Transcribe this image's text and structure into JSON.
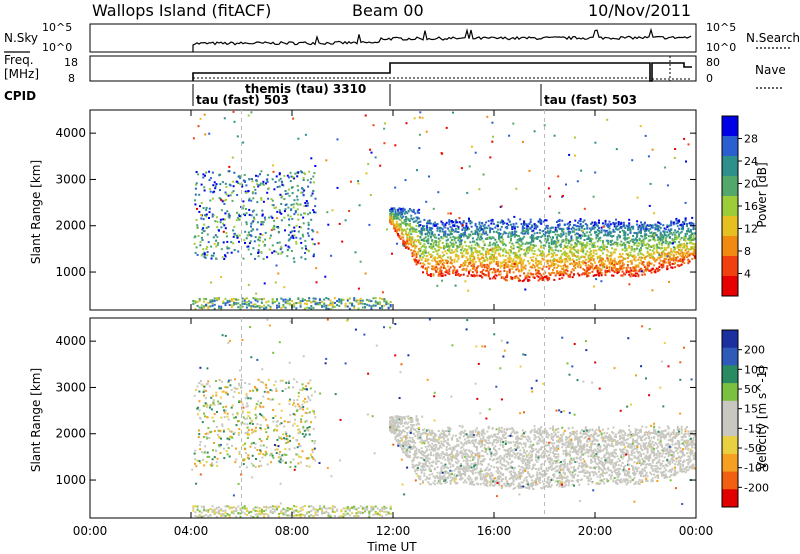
{
  "header": {
    "station": "Wallops Island (fitACF)",
    "beam": "Beam 00",
    "date": "10/Nov/2011"
  },
  "left_labels": {
    "nsky": "N.Sky",
    "freq": "Freq.",
    "freq_unit": "[MHz]",
    "cpid": "CPID"
  },
  "right_labels": {
    "nsearch": "N.Search",
    "nave": "Nave"
  },
  "top_axes": {
    "nsky_ticks": [
      "10^5",
      "10^0"
    ],
    "nsearch_ticks": [
      "10^5",
      "10^0"
    ],
    "freq_ticks": [
      "18",
      "8"
    ],
    "nave_ticks": [
      "80",
      "0"
    ]
  },
  "cpid_blocks": [
    {
      "label": "tau (fast) 503",
      "start_hour": 4.0
    },
    {
      "label": "themis (tau) 3310",
      "start_hour": 12.0
    },
    {
      "label": "tau (fast) 503",
      "start_hour": 18.0
    }
  ],
  "chart_data": {
    "type": "heatmap",
    "x_axis": {
      "label": "Time UT",
      "ticks": [
        "00:00",
        "04:00",
        "08:00",
        "12:00",
        "16:00",
        "20:00",
        "00:00"
      ],
      "range_hours": [
        0,
        24
      ]
    },
    "y_axis": {
      "label": "Slant Range [km]",
      "ticks": [
        1000,
        2000,
        3000,
        4000
      ],
      "range_km": [
        180,
        4500
      ]
    },
    "panels": [
      {
        "name": "power",
        "colorbar_label": "Power [dB]",
        "colorbar_ticks": [
          "28",
          "24",
          "20",
          "16",
          "12",
          "8",
          "4"
        ],
        "colors": [
          "#0000e6",
          "#2a5fd0",
          "#2f8f8a",
          "#52a86a",
          "#9ccc3a",
          "#e6c020",
          "#f08a10",
          "#f04010",
          "#e60000"
        ]
      },
      {
        "name": "velocity",
        "colorbar_label": "Velocity [m s^-1]",
        "colorbar_ticks": [
          "200",
          "100",
          "50",
          "15",
          "-15",
          "-50",
          "-100",
          "-200"
        ],
        "colors": [
          "#1b2f9e",
          "#2f5bb8",
          "#2a8a62",
          "#7ac142",
          "#c8c8c0",
          "#c8c8c0",
          "#e8d040",
          "#f5a020",
          "#f06010",
          "#e00000"
        ]
      }
    ]
  }
}
